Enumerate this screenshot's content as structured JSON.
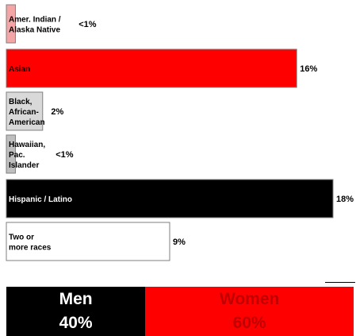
{
  "chart_data": {
    "type": "bar",
    "orientation": "horizontal",
    "categories": [
      [
        "Amer. Indian /",
        "Alaska Native"
      ],
      [
        "Asian"
      ],
      [
        "Black,",
        "African-",
        "American"
      ],
      [
        "Hawaiian,",
        "Pac.",
        "Islander"
      ],
      [
        "Hispanic / Latino"
      ],
      [
        "Two or",
        "more races"
      ]
    ],
    "values": [
      0.5,
      16,
      2,
      0.5,
      18,
      9
    ],
    "value_labels": [
      "<1%",
      "16%",
      "2%",
      "<1%",
      "18%",
      "9%"
    ],
    "colors": [
      "#f4a6a6",
      "#ff0000",
      "#d9d9d9",
      "#bfbfbf",
      "#000000",
      "#ffffff"
    ],
    "label_colors": [
      "#000000",
      "#000000",
      "#000000",
      "#000000",
      "#ffffff",
      "#000000"
    ],
    "xlim": [
      0,
      18
    ]
  },
  "gender_split": {
    "men_label": "Men",
    "men_value": "40%",
    "women_label": "Women",
    "women_value": "60%",
    "men_share": 40,
    "women_share": 60
  }
}
